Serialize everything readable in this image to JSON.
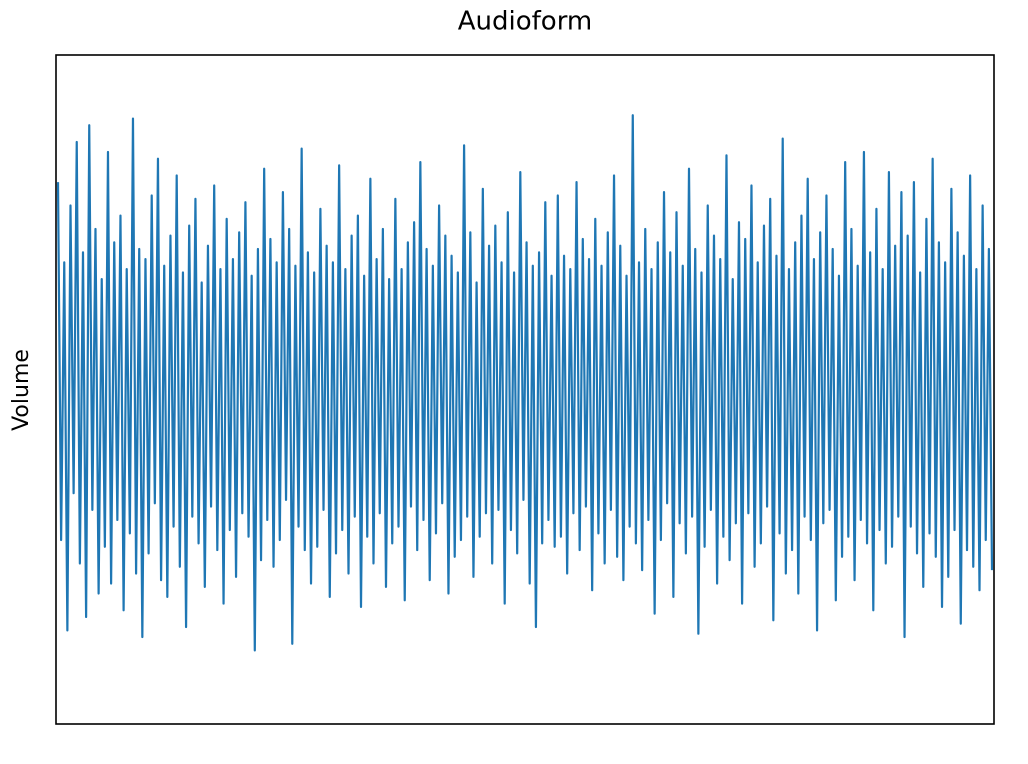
{
  "chart_data": {
    "type": "line",
    "title": "Audioform",
    "y_label": "Volume",
    "color": "#1f77b4",
    "ylim": [
      -1,
      1
    ],
    "values": [
      0.62,
      -0.45,
      0.38,
      -0.72,
      0.55,
      -0.31,
      0.74,
      -0.52,
      0.41,
      -0.68,
      0.79,
      -0.36,
      0.48,
      -0.61,
      0.33,
      -0.47,
      0.71,
      -0.58,
      0.44,
      -0.39,
      0.52,
      -0.66,
      0.36,
      -0.43,
      0.81,
      -0.55,
      0.42,
      -0.74,
      0.39,
      -0.49,
      0.58,
      -0.34,
      0.69,
      -0.57,
      0.37,
      -0.62,
      0.46,
      -0.41,
      0.64,
      -0.53,
      0.35,
      -0.71,
      0.49,
      -0.38,
      0.57,
      -0.46,
      0.32,
      -0.59,
      0.43,
      -0.35,
      0.61,
      -0.48,
      0.36,
      -0.64,
      0.51,
      -0.42,
      0.39,
      -0.56,
      0.47,
      -0.37,
      0.56,
      -0.44,
      0.34,
      -0.78,
      0.42,
      -0.51,
      0.66,
      -0.39,
      0.45,
      -0.53,
      0.38,
      -0.45,
      0.59,
      -0.33,
      0.48,
      -0.76,
      0.37,
      -0.41,
      0.72,
      -0.48,
      0.41,
      -0.58,
      0.35,
      -0.47,
      0.54,
      -0.36,
      0.43,
      -0.62,
      0.38,
      -0.49,
      0.67,
      -0.42,
      0.36,
      -0.55,
      0.46,
      -0.38,
      0.52,
      -0.65,
      0.34,
      -0.44,
      0.63,
      -0.52,
      0.39,
      -0.37,
      0.48,
      -0.59,
      0.33,
      -0.46,
      0.57,
      -0.41,
      0.36,
      -0.63,
      0.44,
      -0.35,
      0.5,
      -0.48,
      0.68,
      -0.39,
      0.42,
      -0.57,
      0.37,
      -0.43,
      0.55,
      -0.34,
      0.46,
      -0.61,
      0.4,
      -0.5,
      0.35,
      -0.45,
      0.73,
      -0.38,
      0.47,
      -0.56,
      0.32,
      -0.44,
      0.6,
      -0.37,
      0.43,
      -0.52,
      0.49,
      -0.36,
      0.38,
      -0.64,
      0.53,
      -0.42,
      0.35,
      -0.49,
      0.65,
      -0.33,
      0.44,
      -0.58,
      0.37,
      -0.71,
      0.41,
      -0.46,
      0.56,
      -0.39,
      0.34,
      -0.47,
      0.58,
      -0.44,
      0.4,
      -0.55,
      0.36,
      -0.37,
      0.62,
      -0.48,
      0.45,
      -0.35,
      0.39,
      -0.6,
      0.51,
      -0.43,
      0.37,
      -0.52,
      0.47,
      -0.36,
      0.64,
      -0.5,
      0.43,
      -0.57,
      0.34,
      -0.41,
      0.82,
      -0.46,
      0.38,
      -0.54,
      0.48,
      -0.39,
      0.36,
      -0.67,
      0.44,
      -0.45,
      0.59,
      -0.34,
      0.41,
      -0.62,
      0.53,
      -0.4,
      0.37,
      -0.49,
      0.66,
      -0.38,
      0.42,
      -0.73,
      0.35,
      -0.47,
      0.55,
      -0.36,
      0.46,
      -0.58,
      0.39,
      -0.44,
      0.7,
      -0.51,
      0.33,
      -0.4,
      0.5,
      -0.64,
      0.45,
      -0.37,
      0.61,
      -0.53,
      0.38,
      -0.46,
      0.49,
      -0.35,
      0.57,
      -0.69,
      0.4,
      -0.43,
      0.75,
      -0.55,
      0.36,
      -0.48,
      0.44,
      -0.61,
      0.52,
      -0.38,
      0.63,
      -0.45,
      0.39,
      -0.72,
      0.47,
      -0.4,
      0.58,
      -0.36,
      0.42,
      -0.63,
      0.34,
      -0.5,
      0.68,
      -0.44,
      0.48,
      -0.57,
      0.37,
      -0.39,
      0.71,
      -0.46,
      0.41,
      -0.66,
      0.54,
      -0.42,
      0.36,
      -0.52,
      0.65,
      -0.47,
      0.43,
      -0.38,
      0.59,
      -0.74,
      0.46,
      -0.41,
      0.62,
      -0.49,
      0.35,
      -0.59,
      0.51,
      -0.43,
      0.69,
      -0.5,
      0.44,
      -0.65,
      0.38,
      -0.56,
      0.6,
      -0.42,
      0.47,
      -0.7,
      0.4,
      -0.48,
      0.64,
      -0.53,
      0.36,
      -0.6,
      0.55,
      -0.45,
      0.42,
      -0.54
    ]
  }
}
